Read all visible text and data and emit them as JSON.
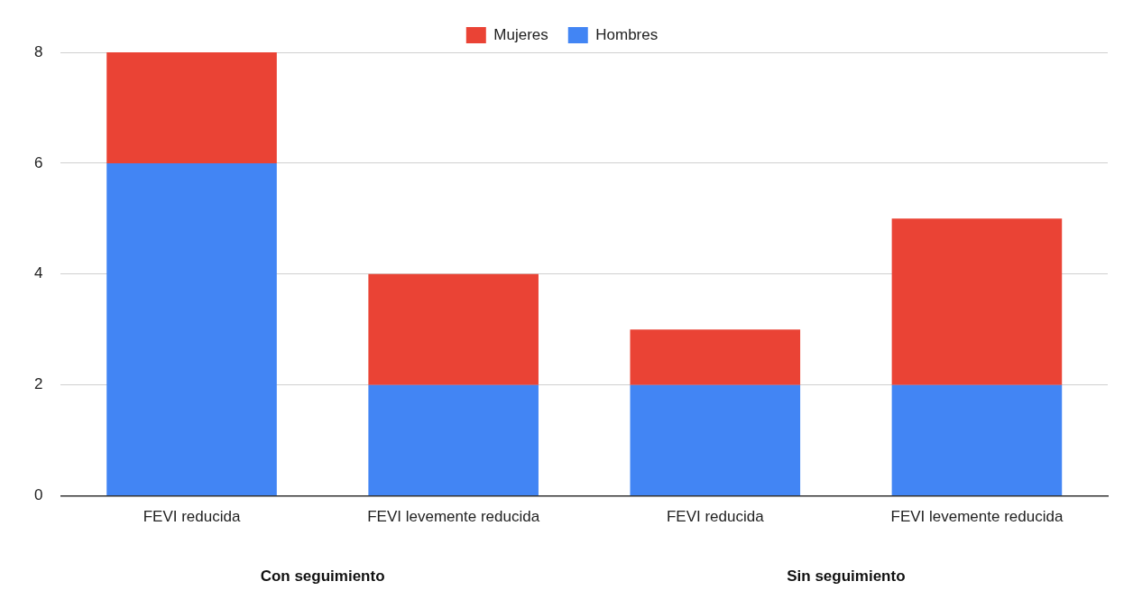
{
  "chart_data": {
    "type": "bar",
    "stacked": true,
    "categories": [
      "FEVI reducida",
      "FEVI levemente reducida",
      "FEVI reducida",
      "FEVI levemente reducida"
    ],
    "series": [
      {
        "name": "Hombres",
        "color": "#4285f4",
        "values": [
          6,
          2,
          2,
          2
        ]
      },
      {
        "name": "Mujeres",
        "color": "#ea4335",
        "values": [
          2,
          2,
          1,
          3
        ]
      }
    ],
    "ylim": [
      0,
      8
    ],
    "yticks": [
      0,
      2,
      4,
      6,
      8
    ],
    "grid": "y",
    "legend": "top",
    "annotations": [
      "Con seguimiento",
      "Sin seguimiento"
    ]
  }
}
